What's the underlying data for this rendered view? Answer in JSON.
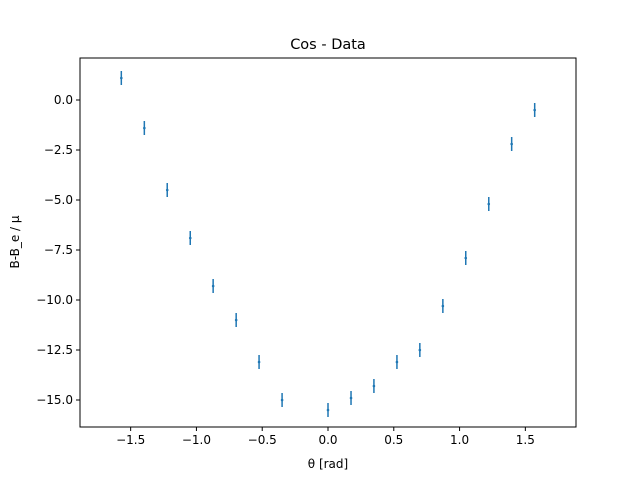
{
  "chart_data": {
    "type": "scatter",
    "title": "Cos - Data",
    "xlabel": "θ [rad]",
    "ylabel": "B-B_e / μ",
    "xlim": [
      -1.885,
      1.885
    ],
    "ylim": [
      -16.35,
      2.1
    ],
    "x_ticks": [
      -1.5,
      -1.0,
      -0.5,
      0.0,
      0.5,
      1.0,
      1.5
    ],
    "x_tick_labels": [
      "−1.5",
      "−1.0",
      "−0.5",
      "0.0",
      "0.5",
      "1.0",
      "1.5"
    ],
    "y_ticks": [
      0.0,
      -2.5,
      -5.0,
      -7.5,
      -10.0,
      -12.5,
      -15.0
    ],
    "y_tick_labels": [
      "0.0",
      "−2.5",
      "−5.0",
      "−7.5",
      "−10.0",
      "−12.5",
      "−15.0"
    ],
    "grid": false,
    "series": [
      {
        "color": "#1f77b4",
        "marker": "errorbar",
        "x": [
          -1.571,
          -1.396,
          -1.222,
          -1.047,
          -0.873,
          -0.698,
          -0.524,
          -0.349,
          0.0,
          0.175,
          0.349,
          0.524,
          0.698,
          0.873,
          1.047,
          1.222,
          1.396,
          1.571
        ],
        "y": [
          1.1,
          -1.4,
          -4.5,
          -6.9,
          -9.3,
          -11.0,
          -13.1,
          -15.0,
          -15.5,
          -14.9,
          -14.3,
          -13.1,
          -12.5,
          -10.3,
          -7.9,
          -5.2,
          -2.2,
          -0.5
        ],
        "yerr": [
          0.35,
          0.35,
          0.35,
          0.35,
          0.35,
          0.35,
          0.35,
          0.35,
          0.35,
          0.35,
          0.35,
          0.35,
          0.35,
          0.35,
          0.35,
          0.35,
          0.35,
          0.35
        ]
      }
    ]
  }
}
